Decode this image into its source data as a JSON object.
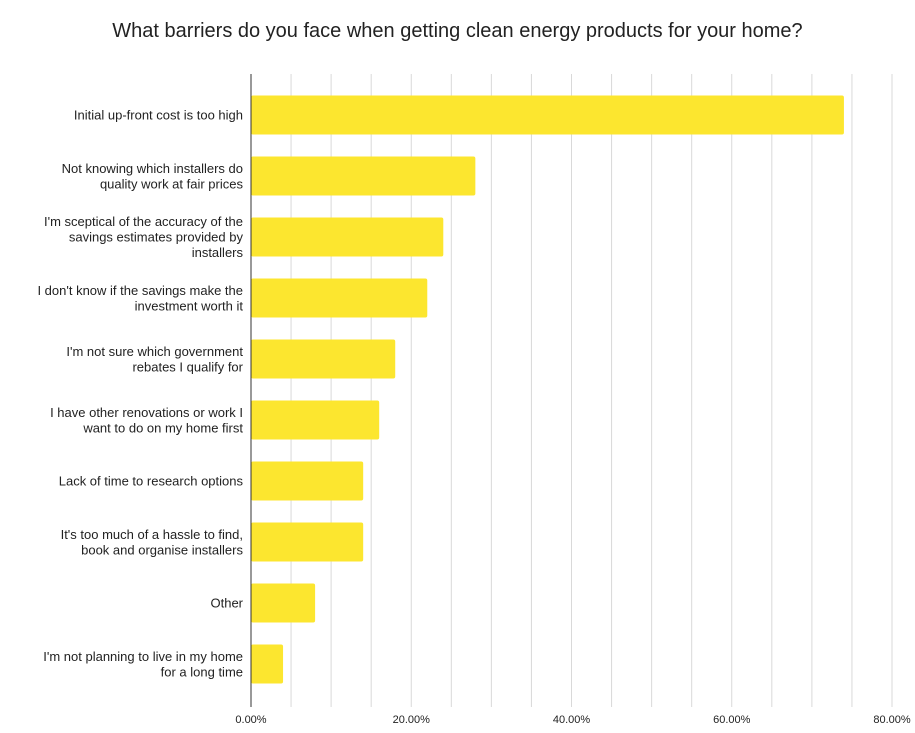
{
  "chart_data": {
    "type": "bar",
    "orientation": "horizontal",
    "title": "What barriers do you face when getting clean energy products for your home?",
    "xlabel": "",
    "ylabel": "",
    "categories": [
      "Initial up-front cost is too high",
      "Not knowing which installers do quality work at fair prices",
      "I'm sceptical of the accuracy of the savings estimates provided by installers",
      "I don't know if the savings make the investment worth it",
      "I'm not sure which government rebates I qualify for",
      "I have other renovations or work I want to do on my home first",
      "Lack of time to research options",
      "It's too much of a hassle to find, book and organise installers",
      "Other",
      "I'm not planning to live in my home for a long time"
    ],
    "category_lines": [
      [
        "Initial up-front cost is too high"
      ],
      [
        "Not knowing which installers do",
        "quality work at fair prices"
      ],
      [
        "I'm sceptical of the accuracy of the",
        "savings estimates provided by",
        "installers"
      ],
      [
        "I don't know if the savings make the",
        "investment worth it"
      ],
      [
        "I'm not sure which government",
        "rebates I qualify for"
      ],
      [
        "I have other renovations or work I",
        "want to do on my home first"
      ],
      [
        "Lack of time to research options"
      ],
      [
        "It's too much of a hassle to find,",
        "book and organise installers"
      ],
      [
        "Other"
      ],
      [
        "I'm not planning to live in my home",
        "for a long time"
      ]
    ],
    "values": [
      74.0,
      28.0,
      24.0,
      22.0,
      18.0,
      16.0,
      14.0,
      14.0,
      8.0,
      4.0
    ],
    "xlim": [
      0,
      80
    ],
    "ticks": [
      0,
      20,
      40,
      60,
      80
    ],
    "tick_labels": [
      "0.00%",
      "20.00%",
      "40.00%",
      "60.00%",
      "80.00%"
    ],
    "grid": true,
    "bar_color": "#fce62f",
    "legend": "none"
  }
}
